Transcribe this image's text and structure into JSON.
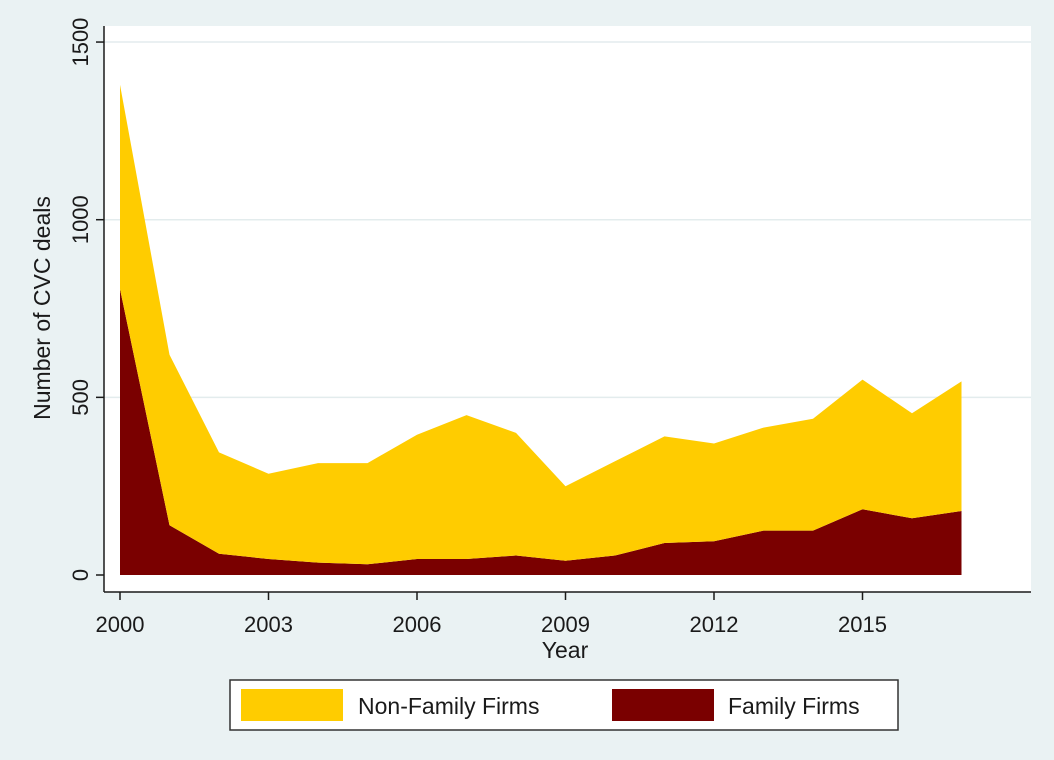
{
  "chart_data": {
    "type": "area",
    "stacked": true,
    "x": [
      2000,
      2001,
      2002,
      2003,
      2004,
      2005,
      2006,
      2007,
      2008,
      2009,
      2010,
      2011,
      2012,
      2013,
      2014,
      2015,
      2016,
      2017
    ],
    "series": [
      {
        "name": "Family Firms",
        "color": "#7a0000",
        "values": [
          805,
          140,
          60,
          45,
          35,
          30,
          45,
          45,
          55,
          40,
          55,
          90,
          95,
          125,
          125,
          185,
          160,
          180
        ]
      },
      {
        "name": "Non-Family Firms",
        "color": "#ffcc00",
        "values": [
          575,
          480,
          285,
          240,
          280,
          285,
          350,
          405,
          345,
          210,
          265,
          300,
          275,
          290,
          315,
          365,
          295,
          365
        ]
      }
    ],
    "totals_top": [
      1380,
      620,
      345,
      285,
      315,
      315,
      395,
      450,
      400,
      250,
      320,
      390,
      370,
      415,
      440,
      550,
      455,
      545
    ],
    "xlabel": "Year",
    "ylabel": "Number of CVC deals",
    "x_ticks": [
      "2000",
      "2003",
      "2006",
      "2009",
      "2012",
      "2015"
    ],
    "y_ticks": [
      "0",
      "500",
      "1000",
      "1500"
    ],
    "xlim": [
      2000,
      2017.6
    ],
    "ylim": [
      0,
      1500
    ],
    "grid": "horizontal",
    "legend": {
      "placement": "bottom",
      "entries": [
        "Non-Family Firms",
        "Family Firms"
      ]
    }
  }
}
